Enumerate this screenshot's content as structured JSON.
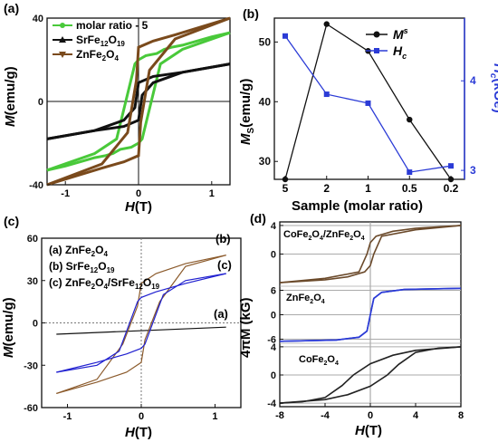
{
  "chart_data": [
    {
      "panel": "(a)",
      "type": "line",
      "xlabel": "H(T)",
      "ylabel": "M(emu/g)",
      "xlim": [
        -1.25,
        1.25
      ],
      "ylim": [
        -40,
        40
      ],
      "xticks": [
        -1,
        0,
        1
      ],
      "yticks": [
        -40,
        0,
        40
      ],
      "legend_position": "top-left",
      "series": [
        {
          "name": "molar ratio - 5",
          "color": "#49c93a",
          "marker": "circle",
          "upper": {
            "x": [
              -1.25,
              -0.6,
              -0.3,
              -0.05,
              0.0,
              0.1,
              0.25,
              0.35,
              0.45,
              0.6,
              1.0,
              1.25
            ],
            "y": [
              -33,
              -25,
              -18,
              18,
              20,
              22,
              23,
              25,
              26,
              27,
              31,
              33
            ]
          },
          "lower": {
            "x": [
              -1.25,
              -1.0,
              -0.6,
              -0.45,
              -0.35,
              -0.25,
              -0.1,
              0.0,
              0.05,
              0.3,
              0.6,
              1.25
            ],
            "y": [
              -33,
              -31,
              -27,
              -26,
              -25,
              -23,
              -22,
              -20,
              -18,
              18,
              25,
              33
            ]
          }
        },
        {
          "name": "SrFe12O19",
          "color": "#111111",
          "marker": "triangle",
          "upper": {
            "x": [
              -1.25,
              -0.6,
              -0.2,
              -0.05,
              0.0,
              0.2,
              0.6,
              1.25
            ],
            "y": [
              -18,
              -14,
              -9,
              -3,
              9,
              12,
              14,
              18
            ]
          },
          "lower": {
            "x": [
              -1.25,
              -0.6,
              -0.2,
              0.0,
              0.05,
              0.2,
              0.6,
              1.25
            ],
            "y": [
              -18,
              -14,
              -12,
              -9,
              3,
              9,
              14,
              18
            ]
          }
        },
        {
          "name": "ZnFe2O4",
          "color": "#7a4a1c",
          "marker": "triangle-down",
          "upper": {
            "x": [
              -1.25,
              -0.5,
              -0.15,
              -0.03,
              0.0,
              0.2,
              0.5,
              1.25
            ],
            "y": [
              -40,
              -30,
              -15,
              10,
              26,
              29,
              32,
              40
            ]
          },
          "lower": {
            "x": [
              -1.25,
              -0.5,
              -0.2,
              0.0,
              0.03,
              0.15,
              0.5,
              1.25
            ],
            "y": [
              -40,
              -32,
              -29,
              -26,
              -10,
              15,
              30,
              40
            ]
          }
        }
      ]
    },
    {
      "panel": "(b)",
      "type": "line",
      "xlabel": "Sample (molar ratio)",
      "categories": [
        "5",
        "2",
        "1",
        "0.5",
        "0.2"
      ],
      "ylabel_left": "MS(emu/g)",
      "ylabel_right": "Hc(kOe)",
      "ylim_left": [
        27,
        54
      ],
      "yticks_left": [
        30,
        40,
        50
      ],
      "ylim_right": [
        2.9,
        4.7
      ],
      "yticks_right": [
        3,
        4
      ],
      "legend_position": "top-right",
      "series": [
        {
          "name": "MS",
          "axis": "left",
          "color": "#111111",
          "marker": "circle",
          "values": [
            27,
            53,
            48.5,
            37,
            27
          ]
        },
        {
          "name": "Hc",
          "axis": "right",
          "color": "#2b3bd6",
          "marker": "square",
          "values": [
            4.5,
            3.85,
            3.75,
            2.98,
            3.05
          ]
        }
      ]
    },
    {
      "panel": "(c)",
      "type": "line",
      "xlabel": "H(T)",
      "ylabel": "M(emu/g)",
      "xlim": [
        -1.35,
        1.35
      ],
      "ylim": [
        -60,
        60
      ],
      "xticks": [
        -1,
        0,
        1
      ],
      "yticks": [
        -60,
        -30,
        0,
        30,
        60
      ],
      "legend": [
        "(a) ZnFe2O4",
        "(b) SrFe12O19",
        "(c) ZnFe2O4/SrFe12O19"
      ],
      "series": [
        {
          "name": "(a)",
          "color": "#111111",
          "x": [
            -1.15,
            1.15
          ],
          "y": [
            -8,
            -3
          ]
        },
        {
          "name": "(b)",
          "color": "#8b5a2b",
          "upper": {
            "x": [
              -1.15,
              -0.6,
              -0.25,
              -0.05,
              0.0,
              0.2,
              0.6,
              1.15
            ],
            "y": [
              -50,
              -40,
              -15,
              12,
              28,
              35,
              42,
              48
            ]
          },
          "lower": {
            "x": [
              -1.15,
              -0.6,
              -0.2,
              0.0,
              0.05,
              0.25,
              0.6,
              1.15
            ],
            "y": [
              -50,
              -42,
              -35,
              -28,
              -12,
              15,
              40,
              48
            ]
          }
        },
        {
          "name": "(c)",
          "color": "#2020d0",
          "upper": {
            "x": [
              -1.15,
              -0.6,
              -0.3,
              -0.05,
              0.0,
              0.2,
              0.6,
              1.15
            ],
            "y": [
              -35,
              -30,
              -20,
              15,
              18,
              22,
              28,
              35
            ]
          },
          "lower": {
            "x": [
              -1.15,
              -0.6,
              -0.2,
              0.0,
              0.05,
              0.3,
              0.6,
              1.15
            ],
            "y": [
              -35,
              -28,
              -22,
              -18,
              -15,
              20,
              30,
              35
            ]
          }
        }
      ]
    },
    {
      "panel": "(d)",
      "type": "line",
      "xlabel": "H(T)",
      "ylabel": "4πM (kG)",
      "xlim": [
        -8,
        8
      ],
      "xticks": [
        -8,
        -4,
        0,
        4,
        8
      ],
      "subpanels": [
        {
          "label": "CoFe2O4/ZnFe2O4",
          "ylim": [
            -4.5,
            4.5
          ],
          "yticks": [
            4,
            0
          ],
          "color": "#6b4a2b",
          "upper": {
            "x": [
              -8,
              -4,
              -1,
              -0.3,
              0.0,
              0.5,
              2,
              4,
              8
            ],
            "y": [
              -4,
              -3.4,
              -2.5,
              0,
              1.6,
              2.5,
              3.2,
              3.6,
              4
            ]
          },
          "lower": {
            "x": [
              -8,
              -4,
              -2,
              -0.5,
              0.0,
              0.3,
              1,
              4,
              8
            ],
            "y": [
              -4,
              -3.6,
              -3.2,
              -2.5,
              -1.6,
              0,
              2.5,
              3.4,
              4
            ]
          }
        },
        {
          "label": "ZnFe2O4",
          "ylim": [
            -7,
            7
          ],
          "yticks": [
            6,
            0,
            -6
          ],
          "color": "#2b3bd6",
          "upper": {
            "x": [
              -8,
              -3,
              -1,
              -0.3,
              0.0,
              0.3,
              1,
              3,
              8
            ],
            "y": [
              -6.5,
              -6.2,
              -5.5,
              -4,
              0,
              4,
              5.5,
              6.2,
              6.5
            ]
          },
          "lower": {
            "x": [
              -8,
              -3,
              -1,
              -0.3,
              0.0,
              0.3,
              1,
              3,
              8
            ],
            "y": [
              -6.5,
              -6.2,
              -5.5,
              -4,
              0,
              4,
              5.5,
              6.2,
              6.5
            ]
          }
        },
        {
          "label": "CoFe2O4",
          "ylim": [
            -4.5,
            4.5
          ],
          "yticks": [
            4,
            0,
            -4
          ],
          "color": "#222222",
          "upper": {
            "x": [
              -8,
              -6,
              -4,
              -2.5,
              -1.5,
              0,
              2,
              4,
              8
            ],
            "y": [
              -4,
              -3.8,
              -3.2,
              -1.5,
              0,
              1.6,
              2.8,
              3.5,
              4
            ]
          },
          "lower": {
            "x": [
              -8,
              -4,
              -2,
              0,
              1.5,
              2.5,
              4,
              6,
              8
            ],
            "y": [
              -4,
              -3.5,
              -2.8,
              -1.6,
              0,
              1.5,
              3.2,
              3.8,
              4
            ]
          }
        }
      ]
    }
  ],
  "labels": {
    "a_panel": "(a)",
    "a_ylabel_M": "M",
    "a_ylabel_unit": "(emu/g)",
    "a_xlabel_H": "H",
    "a_xlabel_unit": "(T)",
    "a_leg1": "molar ratio - 5",
    "a_leg2_pre": "SrFe",
    "a_leg2_s1": "12",
    "a_leg2_mid": "O",
    "a_leg2_s2": "19",
    "a_leg3_pre": "ZnFe",
    "a_leg3_s1": "2",
    "a_leg3_mid": "O",
    "a_leg3_s2": "4",
    "b_panel": "(b)",
    "b_leg_M": "M",
    "b_leg_M_sub": "s",
    "b_leg_H": "H",
    "b_leg_H_sub": "c",
    "b_ylabel_M": "M",
    "b_ylabel_M_sub": "S",
    "b_ylabel_unit": "(emu/g)",
    "b_ylabel_r": "H",
    "b_ylabel_r_sub": "c",
    "b_ylabel_r_unit": "(kOe)",
    "b_xlabel": "Sample (molar ratio)",
    "c_panel": "(c)",
    "c_leg_a": "(a) ZnFe",
    "c_leg_a_s1": "2",
    "c_leg_a_mid": "O",
    "c_leg_a_s2": "4",
    "c_leg_b": "(b) SrFe",
    "c_leg_b_s1": "12",
    "c_leg_b_mid": "O",
    "c_leg_b_s2": "19",
    "c_leg_c": "(c) ZnFe",
    "c_leg_c_s1": "2",
    "c_leg_c_mid": "O",
    "c_leg_c_s2": "4",
    "c_leg_c_mid2": "/SrFe",
    "c_leg_c_s3": "12",
    "c_leg_c_mid3": "O",
    "c_leg_c_s4": "19",
    "c_tag_a": "(a)",
    "c_tag_b": "(b)",
    "c_tag_c": "(c)",
    "c_ylabel_M": "M",
    "c_ylabel_unit": "(emu/g)",
    "c_xlabel_H": "H",
    "c_xlabel_unit": "(T)",
    "d_panel": "(d)",
    "d_lab1_pre": "CoFe",
    "d_lab1_s1": "2",
    "d_lab1_mid": "O",
    "d_lab1_s2": "4",
    "d_lab1_mid2": "/ZnFe",
    "d_lab1_s3": "2",
    "d_lab1_mid3": "O",
    "d_lab1_s4": "4",
    "d_lab2_pre": "ZnFe",
    "d_lab2_s1": "2",
    "d_lab2_mid": "O",
    "d_lab2_s2": "4",
    "d_lab3_pre": "CoFe",
    "d_lab3_s1": "2",
    "d_lab3_mid": "O",
    "d_lab3_s2": "4",
    "d_ylabel": "4πM (kG)",
    "d_xlabel_H": "H",
    "d_xlabel_unit": "(T)"
  },
  "colors": {
    "axis": "#111111",
    "green": "#49c93a",
    "brown": "#7a4a1c",
    "blue": "#2b3bd6"
  }
}
